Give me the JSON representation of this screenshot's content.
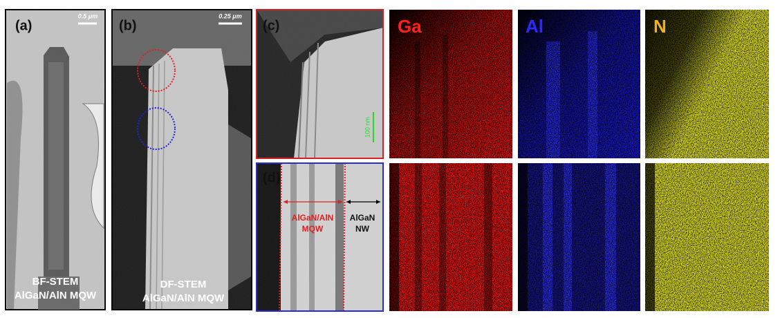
{
  "panels": {
    "a": {
      "label": "(a)",
      "scale": "0.5 μm",
      "caption_1": "BF-STEM",
      "caption_2": "AlGaN/AlN MQW"
    },
    "b": {
      "label": "(b)",
      "scale": "0.25 μm",
      "caption_1": "DF-STEM",
      "caption_2": "AlGaN/AlN MQW"
    },
    "c": {
      "label": "(c)",
      "scale": "100 nm"
    },
    "d": {
      "label": "(d)",
      "left_1": "AlGaN/AlN",
      "left_2": "MQW",
      "right_1": "AlGaN",
      "right_2": "NW"
    }
  },
  "maps": {
    "ga": "Ga",
    "al": "Al",
    "n": "N"
  }
}
